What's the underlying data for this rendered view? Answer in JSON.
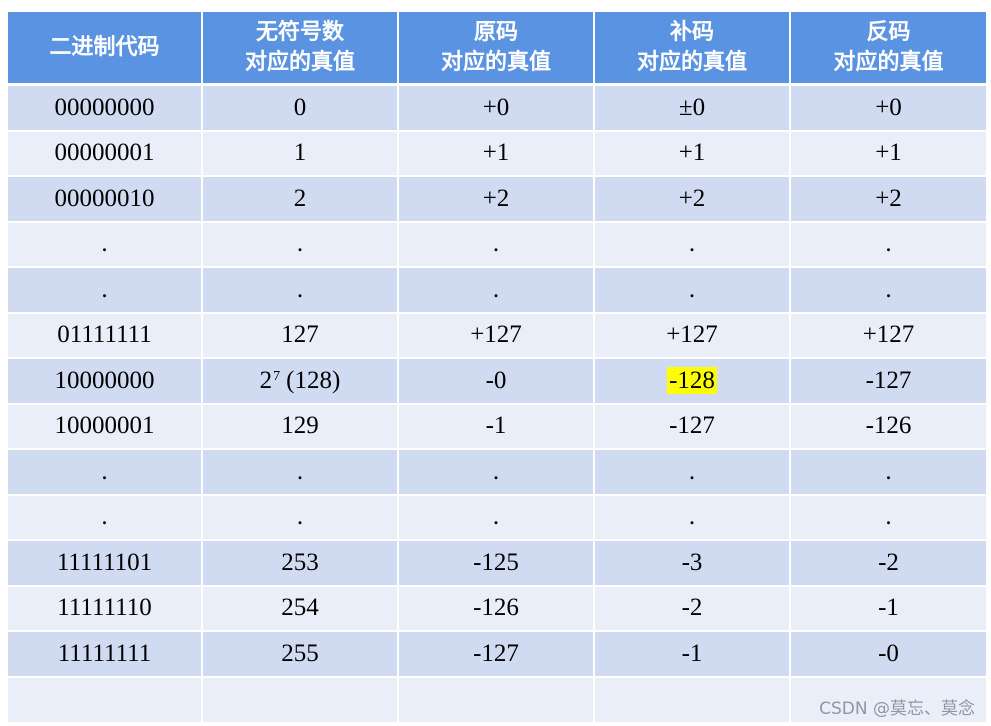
{
  "headers": [
    [
      "二进制代码"
    ],
    [
      "无符号数",
      "对应的真值"
    ],
    [
      "原码",
      "对应的真值"
    ],
    [
      "补码",
      "对应的真值"
    ],
    [
      "反码",
      "对应的真值"
    ]
  ],
  "rows": [
    [
      "00000000",
      "0",
      "+0",
      "±0",
      "+0"
    ],
    [
      "00000001",
      "1",
      "+1",
      "+1",
      "+1"
    ],
    [
      "00000010",
      "2",
      "+2",
      "+2",
      "+2"
    ],
    [
      ".",
      ".",
      ".",
      ".",
      "."
    ],
    [
      ".",
      ".",
      ".",
      ".",
      "."
    ],
    [
      "01111111",
      "127",
      "+127",
      "+127",
      "+127"
    ],
    [
      "10000000",
      "2|7|(128)",
      "-0",
      "-128",
      "-127"
    ],
    [
      "10000001",
      "129",
      "-1",
      "-127",
      "-126"
    ],
    [
      ".",
      ".",
      ".",
      ".",
      "."
    ],
    [
      ".",
      ".",
      ".",
      ".",
      "."
    ],
    [
      "11111101",
      "253",
      "-125",
      "-3",
      "-2"
    ],
    [
      "11111110",
      "254",
      "-126",
      "-2",
      "-1"
    ],
    [
      "11111111",
      "255",
      "-127",
      "-1",
      "-0"
    ],
    [
      "",
      "",
      "",
      "",
      ""
    ]
  ],
  "highlight": {
    "row": 6,
    "col": 3,
    "color": "#ffff00"
  },
  "colors": {
    "header": "#5b93e3",
    "row_dark": "#d0dbf2",
    "row_light": "#e9eef9"
  },
  "watermark": "CSDN @莫忘、莫念"
}
